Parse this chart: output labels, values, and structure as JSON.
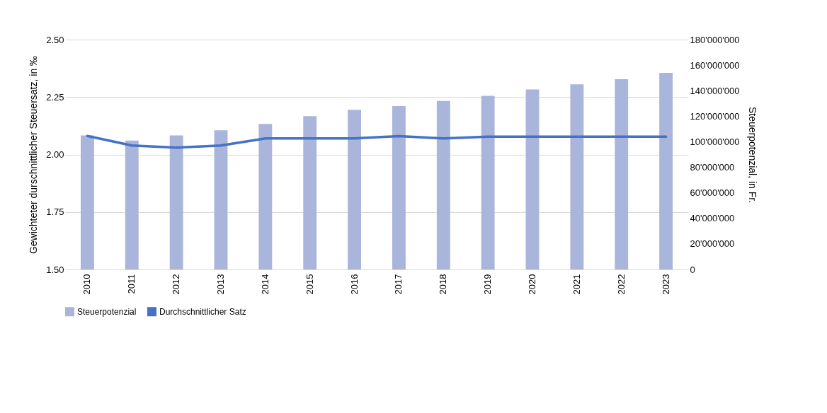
{
  "chart_data": {
    "type": "bar",
    "xlabel": null,
    "ylabel": "Gewichteter durschnittlicher Steuersatz, in ‰",
    "y2label": "Steuerpotenzial, in Fr.",
    "categories": [
      "2010",
      "2011",
      "2012",
      "2013",
      "2014",
      "2015",
      "2016",
      "2017",
      "2018",
      "2019",
      "2020",
      "2021",
      "2022",
      "2023"
    ],
    "series": [
      {
        "name": "Steuerpotenzial",
        "axis": "y2",
        "color": "#a9b5db",
        "values": [
          105000000,
          101000000,
          105000000,
          109000000,
          114000000,
          120000000,
          125000000,
          128000000,
          132000000,
          136000000,
          141000000,
          145000000,
          149000000,
          154000000
        ]
      },
      {
        "name": "Durchschnittlicher Satz",
        "type": "line",
        "color": "#4472c4",
        "values": [
          2.081,
          2.039,
          2.03,
          2.039,
          2.07,
          2.07,
          2.07,
          2.08,
          2.07,
          2.078,
          2.078,
          2.078,
          2.078,
          2.078
        ]
      }
    ],
    "ylim": [
      1.5,
      2.5
    ],
    "yticks": [
      {
        "value": 1.5,
        "label": "1.50"
      },
      {
        "value": 1.75,
        "label": "1.75"
      },
      {
        "value": 2.0,
        "label": "2.00"
      },
      {
        "value": 2.25,
        "label": "2.25"
      },
      {
        "value": 2.5,
        "label": "2.50"
      }
    ],
    "y2lim": [
      0,
      180000000
    ],
    "y2ticks": [
      0,
      {
        "value": 20000000,
        "label": "20'000'000"
      },
      {
        "value": 40000000,
        "label": "40'000'000"
      },
      {
        "value": 60000000,
        "label": "60'000'000"
      },
      {
        "value": 80000000,
        "label": "80'000'000"
      },
      {
        "value": 100000000,
        "label": "100'000'000"
      },
      {
        "value": 120000000,
        "label": "120'000'000"
      },
      {
        "value": 140000000,
        "label": "140'000'000"
      },
      {
        "value": 160000000,
        "label": "160'000'000"
      },
      {
        "value": 180000000,
        "label": "180'000'000"
      }
    ],
    "grid": "y",
    "legend": "bottom",
    "marker": "none",
    "line_style": "solid"
  }
}
